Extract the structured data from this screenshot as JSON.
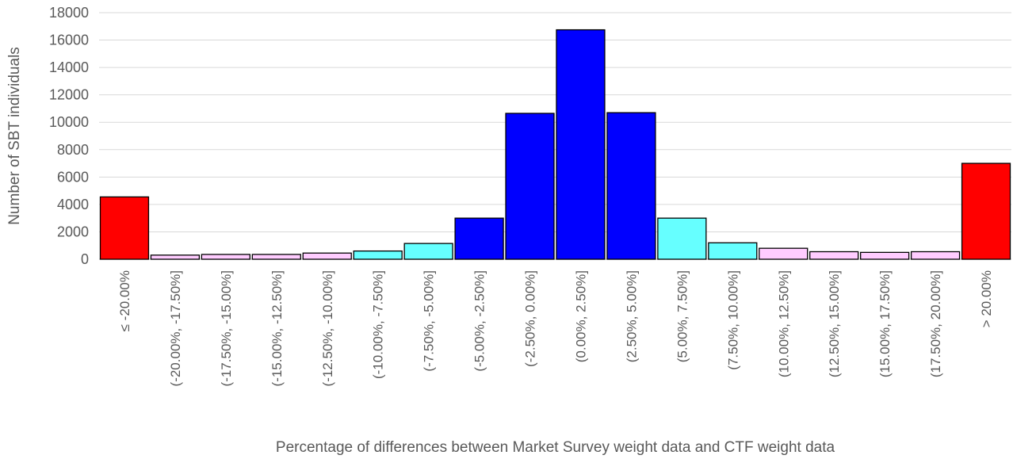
{
  "chart_data": {
    "type": "bar",
    "title": "",
    "xlabel": "Percentage of differences between Market Survey weight data and CTF weight data",
    "ylabel": "Number of SBT individuals",
    "ylim": [
      0,
      18000
    ],
    "yticks": [
      "0",
      "2000",
      "4000",
      "6000",
      "8000",
      "10000",
      "12000",
      "14000",
      "16000",
      "18000"
    ],
    "grid": true,
    "legend": "none",
    "categories": [
      "≤ -20.00%",
      "(-20.00%, -17.50%]",
      "(-17.50%, -15.00%]",
      "(-15.00%, -12.50%]",
      "(-12.50%, -10.00%]",
      "(-10.00%, -7.50%]",
      "(-7.50%, -5.00%]",
      "(-5.00%, -2.50%]",
      "(-2.50%, 0.00%]",
      "(0.00%, 2.50%]",
      "(2.50%, 5.00%]",
      "(5.00%, 7.50%]",
      "(7.50%, 10.00%]",
      "(10.00%, 12.50%]",
      "(12.50%, 15.00%]",
      "(15.00%, 17.50%]",
      "(17.50%, 20.00%]",
      "> 20.00%"
    ],
    "values": [
      4550,
      300,
      350,
      350,
      450,
      600,
      1150,
      3000,
      10650,
      16750,
      10700,
      3000,
      1200,
      800,
      550,
      500,
      550,
      7000
    ],
    "bar_colors": [
      "#ff0000",
      "#ffccff",
      "#ffccff",
      "#ffccff",
      "#ffccff",
      "#66ffff",
      "#66ffff",
      "#0000ff",
      "#0000ff",
      "#0000ff",
      "#0000ff",
      "#66ffff",
      "#66ffff",
      "#ffccff",
      "#ffccff",
      "#ffccff",
      "#ffccff",
      "#ff0000"
    ],
    "gridline_color": "#d9d9d9",
    "bar_edge_color": "#000000"
  }
}
